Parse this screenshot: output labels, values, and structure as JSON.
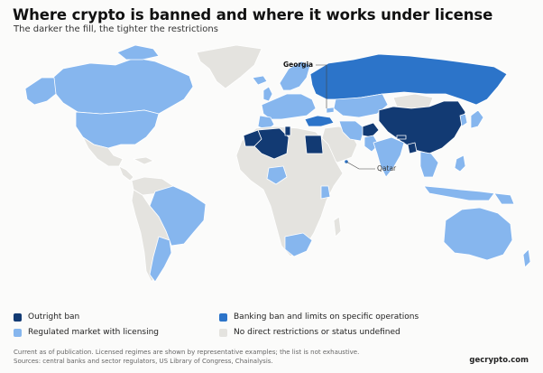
{
  "header": {
    "title": "Where crypto is banned and where it works under license",
    "subtitle": "The darker the fill, the tighter the restrictions"
  },
  "map": {
    "callouts": {
      "georgia": "Georgia",
      "qatar": "Qatar"
    },
    "colors": {
      "ban": "#123a73",
      "banking": "#2c74c9",
      "licensed": "#86b6ee",
      "none": "#e4e3df",
      "ocean": "#fbfbfa",
      "border": "#ffffff"
    }
  },
  "legend": {
    "items": [
      {
        "key": "ban",
        "label": "Outright ban",
        "color": "#123a73"
      },
      {
        "key": "banking",
        "label": "Banking ban and limits on specific operations",
        "color": "#2c74c9"
      },
      {
        "key": "licensed",
        "label": "Regulated market with licensing",
        "color": "#86b6ee"
      },
      {
        "key": "none",
        "label": "No direct restrictions or status undefined",
        "color": "#e4e3df"
      }
    ]
  },
  "footer": {
    "note": "Current as of publication. Licensed regimes are shown by representative examples; the list is not exhaustive.",
    "sources": "Sources: central banks and sector regulators, US Library of Congress, Chainalysis.",
    "brand": "gecrypto.com"
  }
}
